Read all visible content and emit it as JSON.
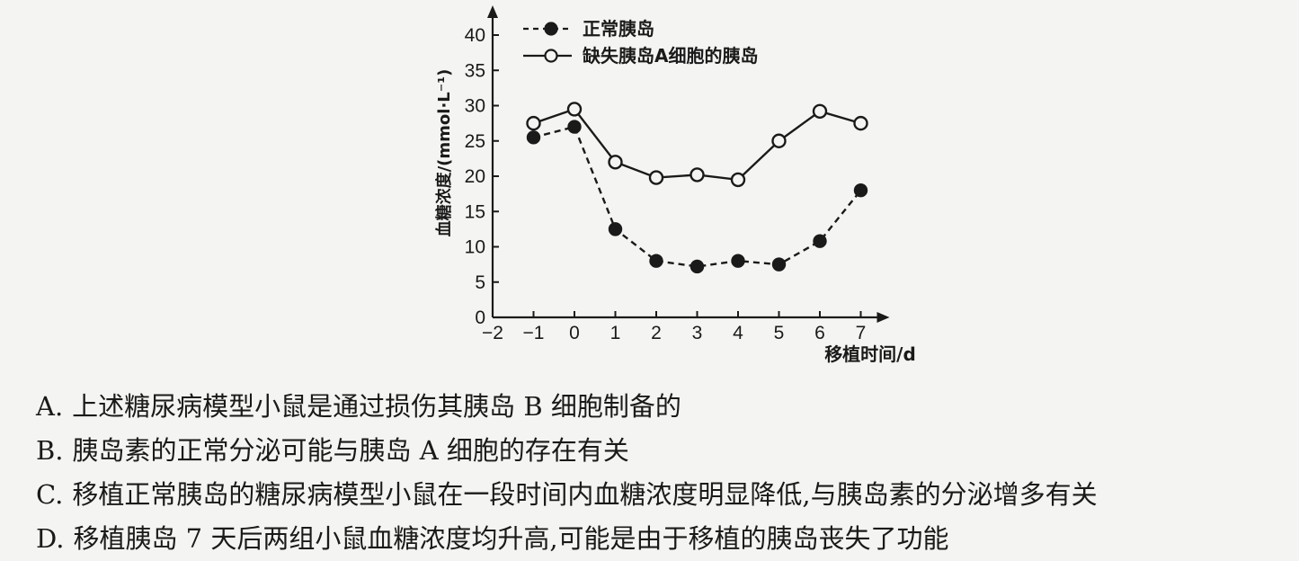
{
  "chart_data": {
    "type": "line",
    "x": [
      -1,
      0,
      1,
      2,
      3,
      4,
      5,
      6,
      7
    ],
    "x_ticks": [
      "-2",
      "-1",
      "0",
      "1",
      "2",
      "3",
      "4",
      "5",
      "6",
      "7"
    ],
    "y_ticks": [
      "0",
      "5",
      "10",
      "15",
      "20",
      "25",
      "30",
      "35",
      "40"
    ],
    "xlim": [
      -2,
      7
    ],
    "ylim": [
      0,
      40
    ],
    "xlabel": "移植时间/d",
    "ylabel": "血糖浓度/(mmol·L⁻¹)",
    "grid": false,
    "legend_position": "top-right",
    "series": [
      {
        "name": "正常胰岛",
        "style": "dashed",
        "marker": "filled-circle",
        "values": [
          25.5,
          27,
          12.5,
          8,
          7.2,
          8,
          7.5,
          10.8,
          18
        ]
      },
      {
        "name": "缺失胰岛A细胞的胰岛",
        "style": "solid",
        "marker": "open-circle",
        "values": [
          27.5,
          29.5,
          22,
          19.8,
          20.2,
          19.5,
          25,
          29.2,
          27.5
        ]
      }
    ],
    "colors": {
      "ink": "#1a1a1a",
      "background": "#f4f4f2"
    }
  },
  "options": [
    {
      "letter": "A.",
      "text": "上述糖尿病模型小鼠是通过损伤其胰岛 B 细胞制备的"
    },
    {
      "letter": "B.",
      "text": "胰岛素的正常分泌可能与胰岛 A 细胞的存在有关"
    },
    {
      "letter": "C.",
      "text": "移植正常胰岛的糖尿病模型小鼠在一段时间内血糖浓度明显降低,与胰岛素的分泌增多有关"
    },
    {
      "letter": "D.",
      "text": "移植胰岛 7 天后两组小鼠血糖浓度均升高,可能是由于移植的胰岛丧失了功能"
    }
  ]
}
